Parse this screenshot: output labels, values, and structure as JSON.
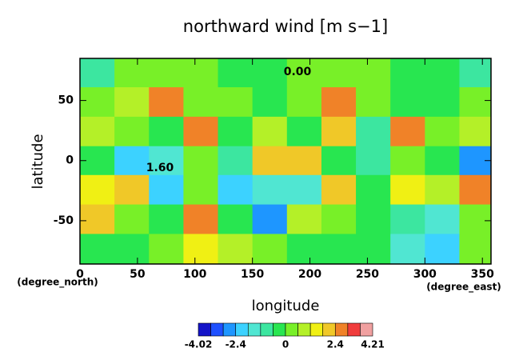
{
  "chart_data": {
    "type": "contour",
    "title": "northward wind [m s−1]",
    "x_label": "longitude",
    "y_label": "latitude",
    "x_unit": "(degree_east)",
    "y_unit": "(degree_north)",
    "lon": [
      15,
      45,
      75,
      105,
      135,
      165,
      195,
      225,
      255,
      285,
      315,
      345
    ],
    "lat": [
      73,
      49,
      24,
      0,
      -24,
      -49,
      -73
    ],
    "z": [
      [
        -1,
        0.3,
        0.5,
        0.5,
        0,
        -0.3,
        0.3,
        0.5,
        0.3,
        0,
        -0.5,
        -1
      ],
      [
        0.5,
        0.8,
        2.5,
        0.5,
        0.3,
        -0.5,
        0.5,
        2.8,
        0.3,
        -0.3,
        0,
        0.5
      ],
      [
        1,
        0.3,
        -0.5,
        3,
        -0.5,
        1,
        -0.3,
        2,
        -1,
        2.5,
        0.5,
        1
      ],
      [
        -0.5,
        -2,
        -1.5,
        0.3,
        -1,
        2,
        2.2,
        0,
        -1,
        0.3,
        -0.5,
        -2.5
      ],
      [
        1.5,
        2,
        -2,
        0.5,
        -2,
        -1.5,
        -1.5,
        2,
        -0.5,
        1.5,
        1,
        3
      ],
      [
        2,
        0.5,
        -0.5,
        2.5,
        -0.5,
        -2.5,
        1,
        0.5,
        0,
        -1,
        -1.5,
        0.5
      ],
      [
        0,
        -0.5,
        0.5,
        1.5,
        1,
        0.3,
        0,
        -0.5,
        0,
        -1.5,
        -2,
        0.5
      ]
    ],
    "xlim": [
      0,
      357.5
    ],
    "ylim": [
      -86,
      85
    ],
    "xticks": [
      0,
      50,
      100,
      150,
      200,
      250,
      300,
      350
    ],
    "yticks": [
      -50,
      0,
      50
    ],
    "annotations": [
      "0.00",
      "1.60"
    ],
    "colorbar": {
      "levels": [
        -4.02,
        -3.6,
        -3.0,
        -2.4,
        -1.8,
        -1.2,
        -0.6,
        0,
        0.6,
        1.2,
        1.8,
        2.4,
        3.0,
        3.6,
        4.21
      ],
      "colors": [
        "#1414c8",
        "#1e50ff",
        "#1e96ff",
        "#3cd2ff",
        "#50e6d2",
        "#3ce6a0",
        "#28e650",
        "#78f028",
        "#b4f028",
        "#f0f014",
        "#f0c828",
        "#f08228",
        "#f03c3c",
        "#f0a0a0"
      ],
      "ticks": [
        -4.02,
        -2.4,
        0,
        2.4,
        4.21
      ]
    }
  }
}
